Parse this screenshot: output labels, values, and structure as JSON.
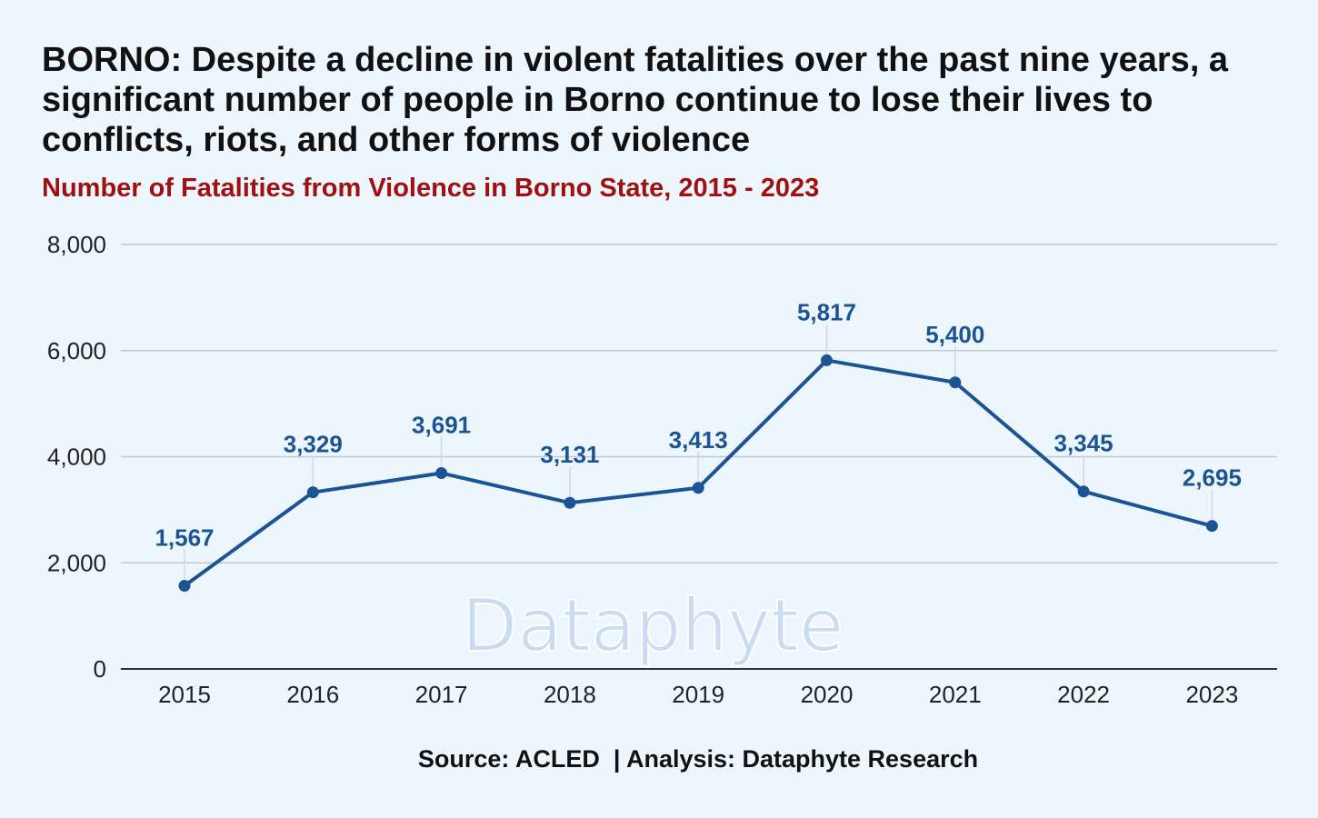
{
  "title": "BORNO: Despite a decline in violent fatalities over the past nine years, a significant number of people in Borno continue to lose their lives to conflicts, riots, and other forms of violence",
  "subtitle": "Number of Fatalities from Violence in Borno State, 2015 - 2023",
  "watermark": "Dataphyte",
  "source": "Source: ACLED  | Analysis: Dataphyte Research",
  "colors": {
    "background": "#eef6fd",
    "line": "#1a5494",
    "data_label": "#1a5494",
    "subtitle": "#a01010",
    "grid": "#c3c8cf",
    "axis": "#333333",
    "watermark": "#c7d9f1"
  },
  "chart_data": {
    "type": "line",
    "categories": [
      "2015",
      "2016",
      "2017",
      "2018",
      "2019",
      "2020",
      "2021",
      "2022",
      "2023"
    ],
    "series": [
      {
        "values": [
          1567,
          3329,
          3691,
          3131,
          3413,
          5817,
          5400,
          3345,
          2695
        ],
        "labels": [
          "1,567",
          "3,329",
          "3,691",
          "3,131",
          "3,413",
          "5,817",
          "5,400",
          "3,345",
          "2,695"
        ]
      }
    ],
    "y_ticks": [
      0,
      2000,
      4000,
      6000,
      8000
    ],
    "y_tick_labels": [
      "0",
      "2,000",
      "4,000",
      "6,000",
      "8,000"
    ],
    "ylim": [
      0,
      8000
    ],
    "grid": true,
    "legend": "none"
  }
}
